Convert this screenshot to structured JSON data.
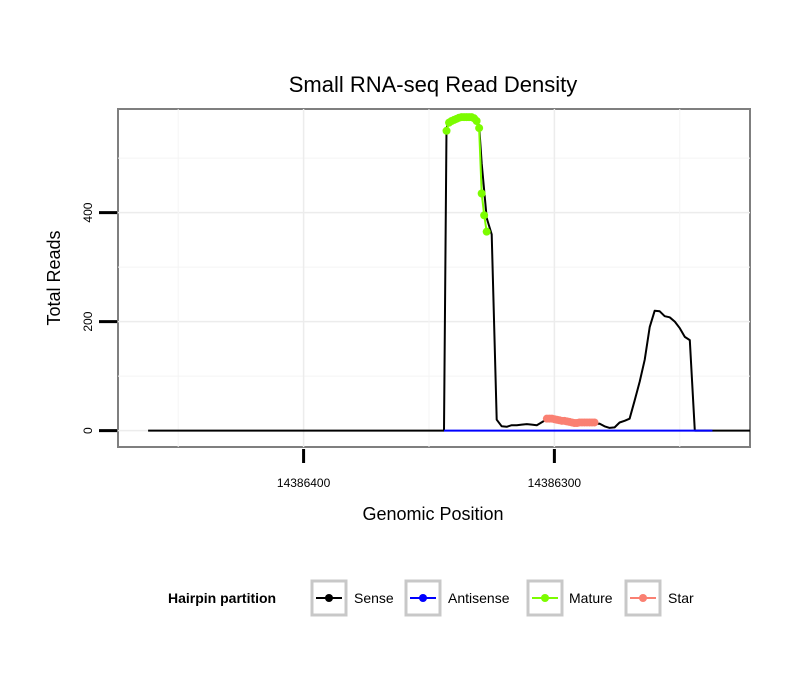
{
  "chart_data": {
    "type": "line",
    "title": "Small RNA-seq Read Density",
    "xlabel": "Genomic Position",
    "ylabel": "Total Reads",
    "x_reversed": true,
    "xlim": [
      14386474,
      14386222
    ],
    "ylim": [
      -30,
      590
    ],
    "x_ticks": [
      14386400,
      14386300
    ],
    "x_tick_labels": [
      "14386400",
      "14386300"
    ],
    "y_ticks": [
      0,
      200,
      400
    ],
    "y_tick_labels": [
      "0",
      "200",
      "400"
    ],
    "grid": true,
    "legend_position": "bottom",
    "legend": {
      "title": "Hairpin partition",
      "entries": [
        {
          "label": "Sense",
          "color": "#000000"
        },
        {
          "label": "Antisense",
          "color": "#0000ff"
        },
        {
          "label": "Mature",
          "color": "#7cfc00"
        },
        {
          "label": "Star",
          "color": "#fa8072"
        }
      ]
    },
    "series": [
      {
        "name": "Sense",
        "color": "#000000",
        "style": "line",
        "x": [
          14386462,
          14386344,
          14386343,
          14386342,
          14386340,
          14386336,
          14386334,
          14386331,
          14386330,
          14386329,
          14386328,
          14386327,
          14386325,
          14386323,
          14386321,
          14386319,
          14386317,
          14386315,
          14386313,
          14386311,
          14386309,
          14386307,
          14386304,
          14386302,
          14386300,
          14386298,
          14386296,
          14386294,
          14386292,
          14386290,
          14386287,
          14386284,
          14386282,
          14386280,
          14386278,
          14386276,
          14386274,
          14386272,
          14386270,
          14386268,
          14386266,
          14386264,
          14386262,
          14386260,
          14386258,
          14386256,
          14386254,
          14386252,
          14386250,
          14386248,
          14386246,
          14386244,
          14386242,
          14386241,
          14386240,
          14386239,
          14386238,
          14386237,
          14386237,
          14386222
        ],
        "y": [
          0,
          0,
          555,
          567,
          573,
          575,
          575,
          568,
          560,
          490,
          440,
          390,
          360,
          20,
          8,
          7,
          10,
          10,
          11,
          12,
          11,
          10,
          18,
          19,
          17,
          15,
          16,
          18,
          15,
          13,
          12,
          12,
          13,
          8,
          5,
          6,
          15,
          18,
          22,
          55,
          90,
          130,
          190,
          220,
          219,
          210,
          208,
          200,
          188,
          172,
          166,
          0,
          0,
          0,
          0,
          0,
          0,
          0,
          0,
          0
        ]
      },
      {
        "name": "Antisense",
        "color": "#0000ff",
        "style": "line",
        "x": [
          14386344,
          14386237
        ],
        "y": [
          0,
          0
        ]
      },
      {
        "name": "Mature",
        "color": "#7cfc00",
        "style": "points",
        "x": [
          14386343,
          14386342,
          14386341,
          14386340,
          14386339,
          14386338,
          14386337,
          14386336,
          14386335,
          14386334,
          14386333,
          14386332,
          14386331,
          14386330,
          14386329,
          14386328,
          14386327
        ],
        "y": [
          550,
          565,
          568,
          570,
          572,
          574,
          575,
          575,
          575,
          575,
          575,
          573,
          568,
          555,
          435,
          395,
          365
        ]
      },
      {
        "name": "Star",
        "color": "#fa8072",
        "style": "points",
        "x": [
          14386303,
          14386302,
          14386301,
          14386300,
          14386299,
          14386298,
          14386297,
          14386296,
          14386295,
          14386294,
          14386293,
          14386292,
          14386291,
          14386290,
          14386289,
          14386288,
          14386287,
          14386286,
          14386285,
          14386284
        ],
        "y": [
          22,
          22,
          22,
          21,
          20,
          19,
          18,
          18,
          17,
          16,
          15,
          14,
          14,
          15,
          15,
          15,
          15,
          15,
          15,
          15
        ]
      }
    ]
  }
}
